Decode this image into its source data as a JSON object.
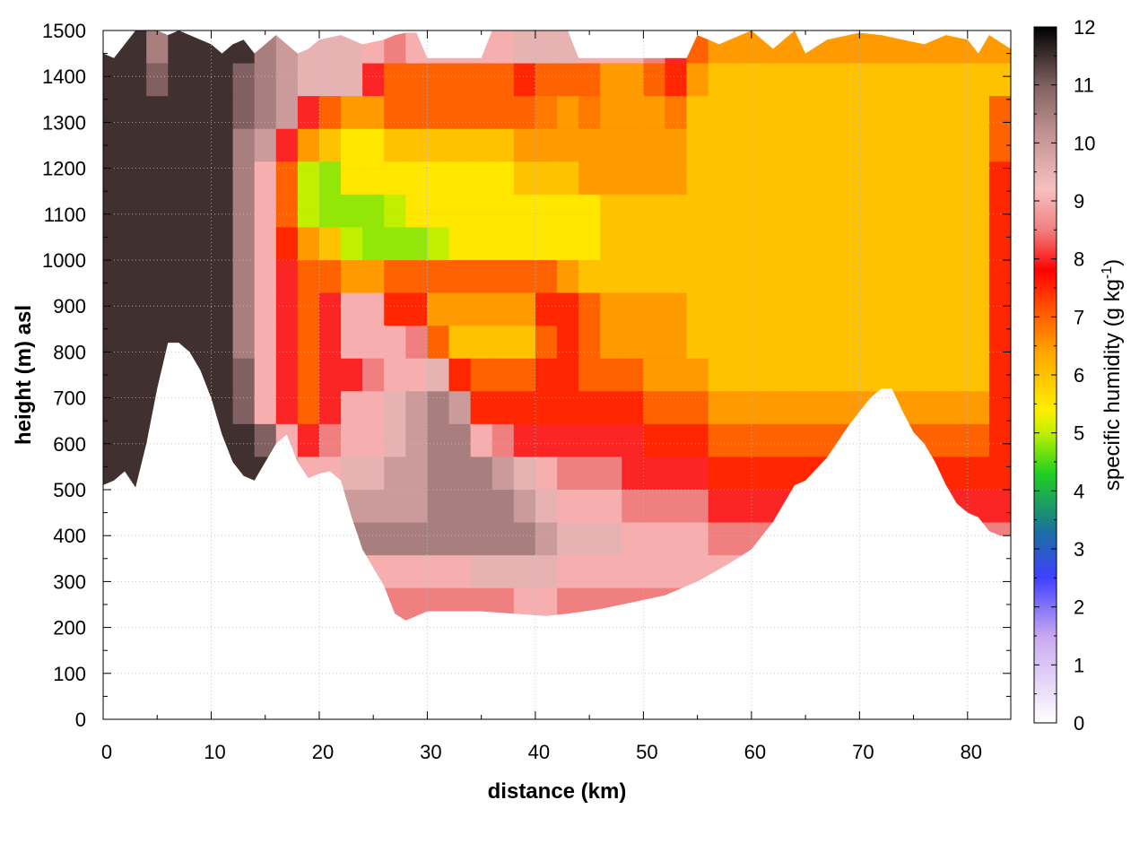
{
  "chart_data": {
    "type": "heatmap",
    "title": "",
    "xlabel": "distance (km)",
    "ylabel": "height (m) asl",
    "xlim": [
      0,
      84
    ],
    "ylim": [
      0,
      1500
    ],
    "grid": true,
    "x_ticks": [
      "0",
      "10",
      "20",
      "30",
      "40",
      "50",
      "60",
      "70",
      "80"
    ],
    "y_ticks": [
      "0",
      "100",
      "200",
      "300",
      "400",
      "500",
      "600",
      "700",
      "800",
      "900",
      "1000",
      "1100",
      "1200",
      "1300",
      "1400",
      "1500"
    ],
    "colorbar": {
      "label_main": "specific humidity (g kg",
      "label_sup": "-1",
      "label_end": ")",
      "range": [
        0,
        12
      ],
      "ticks": [
        "0",
        "1",
        "2",
        "3",
        "4",
        "5",
        "6",
        "7",
        "8",
        "9",
        "10",
        "11",
        "12"
      ],
      "palette": [
        {
          "v": 0,
          "c": "#ffffff"
        },
        {
          "v": 1.5,
          "c": "#c8a8f0"
        },
        {
          "v": 2.5,
          "c": "#4040ff"
        },
        {
          "v": 3.3,
          "c": "#1a70a0"
        },
        {
          "v": 4.3,
          "c": "#20d020"
        },
        {
          "v": 5,
          "c": "#c0f000"
        },
        {
          "v": 5.4,
          "c": "#ffee00"
        },
        {
          "v": 6.4,
          "c": "#ffa500"
        },
        {
          "v": 7.3,
          "c": "#ff4000"
        },
        {
          "v": 7.8,
          "c": "#ff0000"
        },
        {
          "v": 8.5,
          "c": "#f08080"
        },
        {
          "v": 9.2,
          "c": "#f8c0c0"
        },
        {
          "v": 10.2,
          "c": "#c09090"
        },
        {
          "v": 11,
          "c": "#806060"
        },
        {
          "v": 12,
          "c": "#000000"
        }
      ]
    },
    "terrain": [
      [
        0,
        510
      ],
      [
        1,
        520
      ],
      [
        2,
        540
      ],
      [
        3,
        505
      ],
      [
        4,
        600
      ],
      [
        5,
        720
      ],
      [
        6,
        820
      ],
      [
        7,
        820
      ],
      [
        8,
        800
      ],
      [
        9,
        760
      ],
      [
        10,
        700
      ],
      [
        11,
        620
      ],
      [
        12,
        560
      ],
      [
        13,
        530
      ],
      [
        14,
        520
      ],
      [
        15,
        560
      ],
      [
        16,
        600
      ],
      [
        17,
        620
      ],
      [
        18,
        560
      ],
      [
        19,
        525
      ],
      [
        20,
        535
      ],
      [
        21,
        540
      ],
      [
        22,
        520
      ],
      [
        23,
        440
      ],
      [
        24,
        370
      ],
      [
        25,
        330
      ],
      [
        26,
        290
      ],
      [
        27,
        230
      ],
      [
        28,
        215
      ],
      [
        29,
        225
      ],
      [
        30,
        235
      ],
      [
        32,
        235
      ],
      [
        35,
        235
      ],
      [
        38,
        230
      ],
      [
        41,
        225
      ],
      [
        43,
        230
      ],
      [
        46,
        240
      ],
      [
        49,
        255
      ],
      [
        52,
        270
      ],
      [
        55,
        300
      ],
      [
        58,
        340
      ],
      [
        60,
        370
      ],
      [
        62,
        430
      ],
      [
        64,
        510
      ],
      [
        65,
        520
      ],
      [
        67,
        570
      ],
      [
        69,
        640
      ],
      [
        71,
        700
      ],
      [
        72,
        720
      ],
      [
        73,
        720
      ],
      [
        74,
        670
      ],
      [
        75,
        625
      ],
      [
        76,
        600
      ],
      [
        77,
        560
      ],
      [
        78,
        510
      ],
      [
        79,
        470
      ],
      [
        80,
        450
      ],
      [
        81,
        440
      ],
      [
        82,
        410
      ],
      [
        83,
        400
      ],
      [
        84,
        400
      ]
    ],
    "top": [
      [
        0,
        1450
      ],
      [
        1,
        1440
      ],
      [
        2,
        1470
      ],
      [
        3,
        1500
      ],
      [
        4,
        1500
      ],
      [
        5,
        1500
      ],
      [
        6,
        1490
      ],
      [
        7,
        1500
      ],
      [
        9,
        1480
      ],
      [
        10,
        1470
      ],
      [
        11,
        1450
      ],
      [
        12,
        1470
      ],
      [
        13,
        1480
      ],
      [
        14,
        1450
      ],
      [
        15,
        1470
      ],
      [
        16,
        1490
      ],
      [
        17,
        1470
      ],
      [
        18,
        1450
      ],
      [
        19,
        1460
      ],
      [
        20,
        1480
      ],
      [
        22,
        1490
      ],
      [
        24,
        1470
      ],
      [
        26,
        1480
      ],
      [
        27,
        1490
      ],
      [
        28,
        1495
      ],
      [
        29,
        1495
      ],
      [
        30,
        1440
      ],
      [
        35,
        1440
      ],
      [
        36,
        1500
      ],
      [
        43,
        1500
      ],
      [
        44,
        1440
      ],
      [
        54,
        1440
      ],
      [
        55,
        1490
      ],
      [
        57,
        1470
      ],
      [
        59,
        1490
      ],
      [
        60,
        1500
      ],
      [
        62,
        1460
      ],
      [
        64,
        1500
      ],
      [
        65,
        1450
      ],
      [
        67,
        1480
      ],
      [
        69,
        1490
      ],
      [
        70,
        1495
      ],
      [
        72,
        1490
      ],
      [
        74,
        1480
      ],
      [
        76,
        1470
      ],
      [
        78,
        1490
      ],
      [
        80,
        1480
      ],
      [
        81,
        1450
      ],
      [
        82,
        1490
      ],
      [
        84,
        1460
      ]
    ],
    "cells": [
      [
        11.5,
        11.5,
        10.5,
        11.5,
        11.5,
        11.5,
        11.5,
        10.5,
        10,
        9.5,
        9.5,
        9.5,
        9,
        8.5,
        9,
        9,
        9,
        9,
        9,
        9.5,
        9.5,
        9.5,
        9,
        9,
        9,
        8.5,
        8,
        7,
        6.5,
        6.5,
        6.5,
        6.5,
        6.5,
        6.5,
        6.5,
        6.5,
        6.5,
        6.5,
        6.5,
        6.5,
        6.5,
        6.5
      ],
      [
        11.5,
        11.5,
        11,
        11.5,
        11.5,
        11.5,
        11,
        10.5,
        10,
        9.5,
        9.5,
        9.5,
        8,
        7,
        7,
        7,
        7,
        7,
        7,
        7.5,
        7,
        7,
        7,
        6.5,
        6.5,
        7,
        7.5,
        6.5,
        6,
        6,
        6,
        6,
        6,
        6,
        6,
        6,
        6,
        6,
        6,
        6,
        6,
        6
      ],
      [
        11.5,
        11.5,
        11.5,
        11.5,
        11.5,
        11.5,
        11,
        10.5,
        10,
        8,
        7,
        6.5,
        6.5,
        7,
        7,
        7,
        7,
        7,
        7,
        7,
        6.8,
        6.5,
        6.8,
        6.5,
        6.5,
        6.5,
        6.8,
        6,
        6,
        6,
        6,
        6,
        6,
        6,
        6,
        6,
        6,
        6,
        6,
        6,
        6,
        7
      ],
      [
        11.5,
        11.5,
        11.5,
        11.5,
        11.5,
        11.5,
        10.5,
        10,
        8,
        6.5,
        6,
        5.5,
        5.5,
        6,
        6,
        6,
        6,
        6,
        6,
        6.5,
        6.5,
        6.5,
        6.5,
        6.5,
        6.5,
        6.5,
        6.5,
        6,
        6,
        6,
        6,
        6,
        6,
        6,
        6,
        6,
        6,
        6,
        6,
        6,
        6,
        7
      ],
      [
        11.5,
        11.5,
        11.5,
        11.5,
        11.5,
        11.5,
        10.5,
        9,
        7,
        5,
        4.8,
        5.5,
        5.5,
        5.5,
        5.5,
        5.5,
        5.5,
        5.5,
        5.5,
        6,
        6,
        6,
        6.5,
        6.5,
        6.5,
        6.5,
        6.5,
        6,
        6,
        6,
        6,
        6,
        6,
        6,
        6,
        6,
        6,
        6,
        6,
        6,
        6,
        7.5
      ],
      [
        11.5,
        11.5,
        11.5,
        11.5,
        11.5,
        11.5,
        10.5,
        9,
        7,
        5,
        4.8,
        4.8,
        4.8,
        5,
        5.5,
        5.5,
        5.5,
        5.5,
        5.5,
        5.5,
        5.5,
        5.5,
        5.5,
        6,
        6,
        6,
        6,
        6,
        6,
        6,
        6,
        6,
        6,
        6,
        6,
        6,
        6,
        6,
        6,
        6,
        6,
        7.5
      ],
      [
        11.5,
        11.5,
        11.5,
        11.5,
        11.5,
        11.5,
        10.5,
        9,
        7.5,
        6.5,
        6,
        5,
        4.8,
        4.8,
        4.8,
        5,
        5.5,
        5.5,
        5.5,
        5.5,
        5.5,
        5.5,
        5.5,
        6,
        6,
        6,
        6,
        6,
        6,
        6,
        6,
        6,
        6,
        6,
        6,
        6,
        6,
        6,
        6,
        6,
        6,
        7.5
      ],
      [
        11.5,
        11.5,
        11.5,
        11.5,
        11.5,
        11.5,
        10.5,
        9,
        8,
        7,
        7,
        6.5,
        6.5,
        7,
        7,
        7,
        7,
        7,
        7,
        7,
        7,
        6.5,
        6,
        6,
        6,
        6,
        6,
        6,
        6,
        6,
        6,
        6,
        6,
        6,
        6,
        6,
        6,
        6,
        6,
        6,
        6,
        7.5
      ],
      [
        11.5,
        11.5,
        11.5,
        11.5,
        11.5,
        11.5,
        10.5,
        9,
        8,
        7,
        8,
        9,
        9,
        7.5,
        7.5,
        6.5,
        6.5,
        6.5,
        6.5,
        6.5,
        7.5,
        7.5,
        7,
        6.5,
        6.5,
        6.5,
        6.5,
        6,
        6,
        6,
        6,
        6,
        6,
        6,
        6,
        6,
        6,
        6,
        6,
        6,
        6,
        7.5
      ],
      [
        11.5,
        11.5,
        11.5,
        11.5,
        11.5,
        11.5,
        10.5,
        9,
        8,
        7,
        8,
        9,
        9,
        9,
        8.5,
        7,
        6,
        6,
        6,
        6,
        7,
        7.5,
        7,
        6.5,
        6.5,
        6.5,
        6.5,
        6,
        6,
        6,
        6,
        6,
        6,
        6,
        6,
        6,
        6,
        6,
        6,
        6,
        6,
        7.5
      ],
      [
        11.5,
        11.5,
        11.5,
        11.5,
        11.5,
        11.5,
        11,
        9,
        8,
        7,
        8,
        8,
        8.5,
        9,
        9,
        9.5,
        7.5,
        7,
        7,
        7,
        7.5,
        7.5,
        7,
        7,
        7,
        6.5,
        6.5,
        6.5,
        6,
        6,
        6,
        6,
        6,
        6,
        6,
        6,
        6,
        6,
        6,
        6,
        6,
        7.5
      ],
      [
        11.5,
        11.5,
        11.5,
        11.5,
        11.5,
        11.5,
        11,
        9,
        8,
        7,
        8,
        9,
        9,
        9.5,
        10,
        10.5,
        10,
        7.5,
        7.5,
        7.5,
        7.5,
        7.5,
        7.5,
        7.5,
        7.5,
        7,
        7,
        7,
        6.5,
        6.5,
        6.5,
        6.5,
        6.5,
        6.5,
        6.5,
        6.5,
        6.5,
        6.5,
        6.5,
        6.5,
        6.5,
        7.5
      ],
      [
        11.5,
        11.5,
        11.5,
        11.5,
        11.5,
        11.5,
        11.5,
        11,
        9,
        8,
        8.5,
        9,
        9,
        9.5,
        10,
        10.5,
        10.5,
        9,
        8.5,
        8,
        8,
        8,
        8,
        8,
        8,
        7.5,
        7.5,
        7.5,
        7,
        7,
        7,
        7,
        7,
        7,
        7,
        7,
        7,
        7,
        7,
        7,
        7,
        7.5
      ],
      [
        11.5,
        11.5,
        11.5,
        11.5,
        11.5,
        11.5,
        11.5,
        11.5,
        10,
        9,
        9,
        9.5,
        9.5,
        10,
        10,
        10.5,
        10.5,
        10.5,
        10,
        9.5,
        9,
        8.5,
        8.5,
        8.5,
        8,
        8,
        8,
        8,
        7.5,
        7.5,
        7.5,
        7.5,
        7.5,
        7.5,
        7.5,
        7.5,
        7.5,
        7.5,
        7.5,
        7.5,
        7.5,
        7.5
      ],
      [
        11.5,
        11.5,
        11.5,
        11.5,
        11.5,
        11.5,
        11.5,
        11.5,
        11,
        10,
        10,
        10,
        10,
        10,
        10,
        10.5,
        10.5,
        10.5,
        10.5,
        10,
        9.5,
        9,
        9,
        9,
        8.5,
        8.5,
        8.5,
        8.5,
        8,
        8,
        8,
        8,
        8,
        8,
        8,
        8,
        8,
        8,
        8,
        8,
        8,
        8
      ],
      [
        11.5,
        11.5,
        11.5,
        11.5,
        11.5,
        11.5,
        11.5,
        11.5,
        11.5,
        11,
        10.5,
        10.5,
        10.5,
        10.5,
        10.5,
        10.5,
        10.5,
        10.5,
        10.5,
        10.5,
        10,
        9.5,
        9.5,
        9.5,
        9,
        9,
        9,
        9,
        8.5,
        8.5,
        8.5,
        8.5,
        8.5,
        8.5,
        8.5,
        8.5,
        8.5,
        8.5,
        8.5,
        8.5,
        8.5,
        8.5
      ],
      [
        11.5,
        11.5,
        11.5,
        11.5,
        11.5,
        11.5,
        11.5,
        11.5,
        11,
        10.5,
        10,
        9.5,
        9,
        9,
        9,
        9,
        9,
        9.5,
        9.5,
        9.5,
        9.5,
        9,
        9,
        9,
        9,
        9,
        9,
        9,
        9,
        9,
        9,
        9,
        9,
        9,
        9,
        9,
        9,
        9,
        9,
        9,
        9,
        9
      ],
      [
        11.5,
        11.5,
        11.5,
        11.5,
        11.5,
        11.5,
        11.5,
        11,
        10,
        9.5,
        9,
        8.5,
        8.5,
        8.5,
        8.5,
        8.5,
        8.5,
        8.5,
        8.5,
        9,
        9,
        8.5,
        8.5,
        8.5,
        8.5,
        8.5,
        8.5,
        8.5,
        8.5,
        8.5,
        8.5,
        8.5,
        8.5,
        8.5,
        8.5,
        8.5,
        8.5,
        8.5,
        8.5,
        8.5,
        8.5,
        8.5
      ],
      [
        11.5,
        11.5,
        11.5,
        11.5,
        11.5,
        11.5,
        11.5,
        11,
        10,
        9,
        8,
        7.5,
        7.5,
        7.5,
        7.5,
        7.5,
        7.5,
        7.5,
        7.5,
        8,
        8,
        8,
        8,
        8,
        7.5,
        7.5,
        7.5,
        7.5,
        7.5,
        7.5,
        7.5,
        7.5,
        7.5,
        7.5,
        7.5,
        7.5,
        7.5,
        7.5,
        7.5,
        7.5,
        7.5,
        7.5
      ],
      [
        11.5,
        11.5,
        11.5,
        11.5,
        11.5,
        11.5,
        11.5,
        10.5,
        9.5,
        8.5,
        7.5,
        7,
        7,
        7,
        7,
        7,
        7,
        7,
        7.5,
        7.5,
        7.5,
        7.5,
        7.5,
        7.5,
        7,
        7,
        7,
        7,
        7,
        7,
        7,
        7,
        7,
        7,
        7,
        7,
        7,
        7,
        7,
        7,
        7,
        7
      ],
      [
        11.5,
        11.5,
        11.5,
        11.5,
        11.5,
        11.5,
        11,
        10,
        9,
        8,
        7,
        6.5,
        6.5,
        6.5,
        6.5,
        6.5,
        6.5,
        6.5,
        7,
        7,
        7,
        7,
        7,
        7,
        7,
        7,
        7,
        7,
        7,
        7,
        7,
        7,
        7,
        7,
        7,
        7,
        7,
        7,
        7,
        7,
        7,
        7
      ]
    ]
  }
}
